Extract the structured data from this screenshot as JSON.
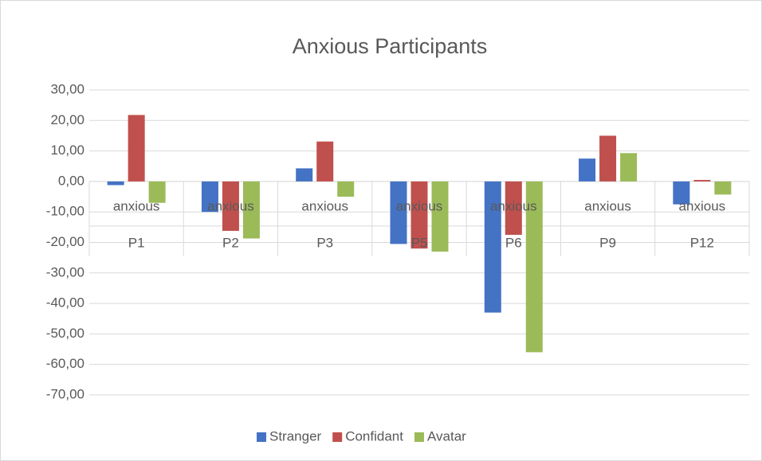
{
  "chart_data": {
    "type": "bar",
    "title": "Anxious Participants",
    "categories": [
      "P1",
      "P2",
      "P3",
      "P5",
      "P6",
      "P9",
      "P12"
    ],
    "category_sublabels": [
      "anxious",
      "anxious",
      "anxious",
      "anxious",
      "anxious",
      "anxious",
      "anxious"
    ],
    "series": [
      {
        "name": "Stranger",
        "color": "#4472c4",
        "values": [
          -1.2,
          -10,
          4.3,
          -20.5,
          -43,
          7.5,
          -7.5
        ]
      },
      {
        "name": "Confidant",
        "color": "#c0504d",
        "values": [
          21.8,
          -16.2,
          13.1,
          -22,
          -17.5,
          15,
          0.5
        ]
      },
      {
        "name": "Avatar",
        "color": "#9bbb59",
        "values": [
          -7,
          -18.7,
          -5,
          -23,
          -56,
          9.3,
          -4.3
        ]
      }
    ],
    "ylim": [
      -70,
      30
    ],
    "yticks": [
      {
        "value": -70,
        "label": "-70,00"
      },
      {
        "value": -60,
        "label": "-60,00"
      },
      {
        "value": -50,
        "label": "-50,00"
      },
      {
        "value": -40,
        "label": "-40,00"
      },
      {
        "value": -30,
        "label": "-30,00"
      },
      {
        "value": -20,
        "label": "-20,00"
      },
      {
        "value": -10,
        "label": "-10,00"
      },
      {
        "value": 0,
        "label": "0,00"
      },
      {
        "value": 10,
        "label": "10,00"
      },
      {
        "value": 20,
        "label": "20,00"
      },
      {
        "value": 30,
        "label": "30,00"
      }
    ],
    "grid": true,
    "legend": "bottom"
  }
}
